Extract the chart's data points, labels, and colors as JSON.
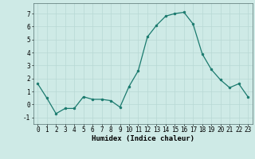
{
  "x": [
    0,
    1,
    2,
    3,
    4,
    5,
    6,
    7,
    8,
    9,
    10,
    11,
    12,
    13,
    14,
    15,
    16,
    17,
    18,
    19,
    20,
    21,
    22,
    23
  ],
  "y": [
    1.6,
    0.5,
    -0.7,
    -0.3,
    -0.3,
    0.6,
    0.4,
    0.4,
    0.3,
    -0.2,
    1.4,
    2.6,
    5.2,
    6.1,
    6.8,
    7.0,
    7.1,
    6.2,
    3.9,
    2.7,
    1.9,
    1.3,
    1.6,
    0.6
  ],
  "line_color": "#1a7a6e",
  "marker_color": "#1a7a6e",
  "bg_color": "#ceeae6",
  "grid_color": "#b8d8d4",
  "xlabel": "Humidex (Indice chaleur)",
  "ylim": [
    -1.5,
    7.8
  ],
  "xlim": [
    -0.5,
    23.5
  ],
  "yticks": [
    -1,
    0,
    1,
    2,
    3,
    4,
    5,
    6,
    7
  ],
  "xticks": [
    0,
    1,
    2,
    3,
    4,
    5,
    6,
    7,
    8,
    9,
    10,
    11,
    12,
    13,
    14,
    15,
    16,
    17,
    18,
    19,
    20,
    21,
    22,
    23
  ],
  "label_fontsize": 6.5,
  "tick_fontsize": 5.5
}
